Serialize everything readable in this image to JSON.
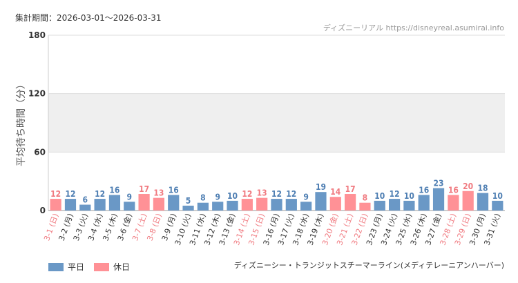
{
  "header": {
    "period": "集計期間：2026-03-01〜2026-03-31",
    "site": "ディズニーリアル https://disneyreal.asumirai.info"
  },
  "footer": {
    "attraction": "ディズニーシー・トランジットスチーマーライン(メディテレーニアンハーバー)"
  },
  "legend": {
    "weekday": "平日",
    "holiday": "休日"
  },
  "colors": {
    "weekday": "#6a98c6",
    "holiday": "#ff9196",
    "weekday_label": "#4f7fb3",
    "holiday_label": "#f07a80",
    "band": "#efefef"
  },
  "chart_data": {
    "type": "bar",
    "ylabel": "平均待ち時間（分）",
    "ylim": [
      0,
      180
    ],
    "yticks": [
      0,
      60,
      120,
      180
    ],
    "shaded_band": [
      60,
      120
    ],
    "categories": [
      "3-1 (日)",
      "3-2 (月)",
      "3-3 (火)",
      "3-4 (水)",
      "3-5 (木)",
      "3-6 (金)",
      "3-7 (土)",
      "3-8 (日)",
      "3-9 (月)",
      "3-10 (火)",
      "3-11 (水)",
      "3-12 (木)",
      "3-13 (金)",
      "3-14 (土)",
      "3-15 (日)",
      "3-16 (月)",
      "3-17 (火)",
      "3-18 (水)",
      "3-19 (木)",
      "3-20 (金)",
      "3-21 (土)",
      "3-22 (日)",
      "3-23 (月)",
      "3-24 (火)",
      "3-25 (水)",
      "3-26 (木)",
      "3-27 (金)",
      "3-28 (土)",
      "3-29 (日)",
      "3-30 (月)",
      "3-31 (火)"
    ],
    "values": [
      12,
      12,
      6,
      12,
      16,
      9,
      17,
      13,
      16,
      5,
      8,
      9,
      10,
      12,
      13,
      12,
      12,
      9,
      19,
      14,
      17,
      8,
      10,
      12,
      10,
      16,
      23,
      16,
      20,
      18,
      10
    ],
    "holiday": [
      true,
      false,
      false,
      false,
      false,
      false,
      true,
      true,
      false,
      false,
      false,
      false,
      false,
      true,
      true,
      false,
      false,
      false,
      false,
      true,
      true,
      true,
      false,
      false,
      false,
      false,
      false,
      true,
      true,
      false,
      false
    ]
  }
}
